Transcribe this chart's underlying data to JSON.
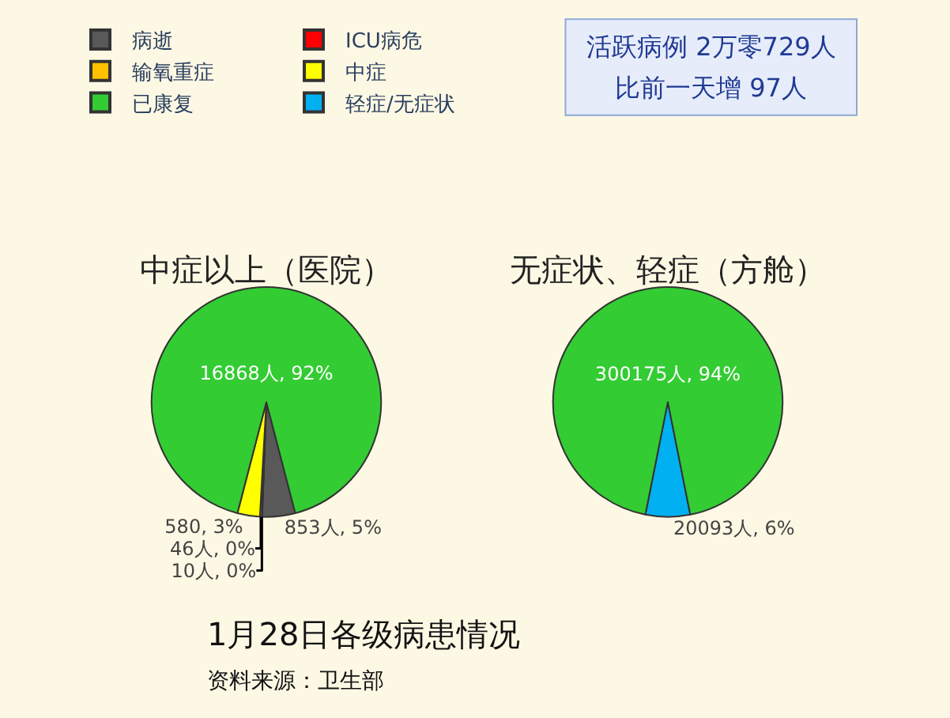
{
  "chart_data": [
    {
      "type": "pie",
      "title": "中症以上（医院）",
      "categories": [
        "病逝",
        "ICU病危",
        "输氧重症",
        "中症",
        "已康复"
      ],
      "values": [
        853,
        10,
        46,
        580,
        16868
      ],
      "colors": [
        "#595959",
        "#ff0000",
        "#ffc000",
        "#ffff00",
        "#33cc33"
      ],
      "value_labels": [
        "853人, 5%",
        "10人, 0%",
        "46人, 0%",
        "580, 3%",
        "16868人, 92%"
      ],
      "legend": "top left",
      "annotations": [
        "活跃病例 2万零729人",
        "比前一天增 97人",
        "1月28日各级病患情况",
        "资料来源：卫生部"
      ]
    },
    {
      "type": "pie",
      "title": "无症状、轻症（方舱）",
      "categories": [
        "轻症/无症状",
        null
      ],
      "values": [
        20093,
        300175
      ],
      "colors": [
        "#00b0f0",
        "#33cc33"
      ],
      "value_labels": [
        "20093人, 6%",
        "300175人, 94%"
      ],
      "legend": "top left"
    }
  ]
}
